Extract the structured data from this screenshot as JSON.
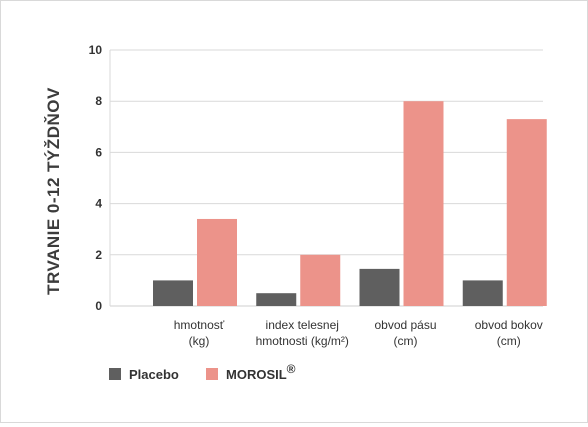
{
  "chart_data": {
    "type": "bar",
    "ylabel": "TRVANIE 0-12 TÝŽDŇOV",
    "xlabel": "",
    "ylim": [
      0,
      10
    ],
    "yticks": [
      0,
      2,
      4,
      6,
      8,
      10
    ],
    "grid": true,
    "legend_position": "bottom-left",
    "categories": [
      [
        "hmotnosť",
        "(kg)"
      ],
      [
        "index telesnej",
        "hmotnosti (kg/m²)"
      ],
      [
        "obvod pásu",
        "(cm)"
      ],
      [
        "obvod bokov",
        "(cm)"
      ]
    ],
    "series": [
      {
        "name": "Placebo",
        "color": "#5f5f5f",
        "values": [
          1.0,
          0.5,
          1.45,
          1.0
        ]
      },
      {
        "name": "MOROSIL",
        "name_suffix": "®",
        "color": "#ec938a",
        "values": [
          3.4,
          2.0,
          8.0,
          7.3
        ]
      }
    ]
  }
}
